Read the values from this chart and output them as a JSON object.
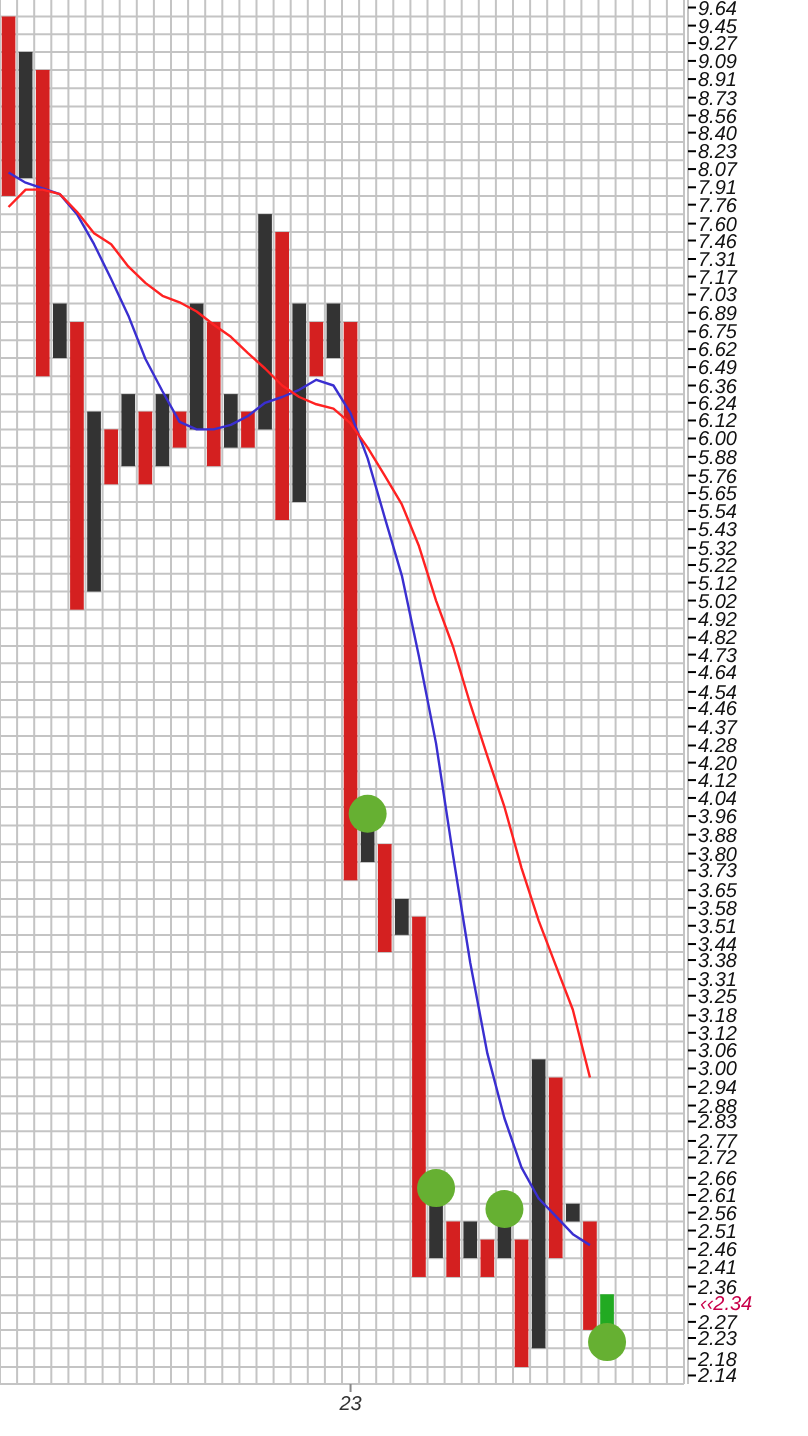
{
  "chart_data": {
    "type": "bar",
    "log": "y",
    "grid": true,
    "ylim": [
      2.12,
      9.72
    ],
    "categories": [
      null,
      null,
      null,
      null,
      null,
      null,
      null,
      null,
      null,
      null,
      null,
      null,
      null,
      null,
      null,
      null,
      null,
      null,
      null,
      null,
      "23",
      null,
      null,
      null,
      null,
      null,
      null,
      null,
      null,
      null,
      null,
      null,
      null,
      null,
      null,
      null
    ],
    "annotations": [
      "‹‹2.34"
    ],
    "yticks": [
      9.64,
      9.45,
      9.27,
      9.09,
      8.91,
      8.73,
      8.56,
      {
        "value": 8.4,
        "label": "8.40"
      },
      8.23,
      8.07,
      7.91,
      7.76,
      {
        "value": 7.6,
        "label": "7.60"
      },
      7.46,
      7.31,
      7.17,
      7.03,
      6.89,
      6.75,
      6.62,
      6.49,
      6.36,
      6.24,
      6.12,
      {
        "value": 6,
        "label": "6.00"
      },
      5.88,
      5.76,
      5.65,
      5.54,
      5.43,
      5.32,
      5.22,
      5.12,
      5.02,
      4.92,
      4.82,
      4.73,
      4.64,
      4.54,
      4.46,
      4.37,
      4.28,
      {
        "value": 4.2,
        "label": "4.20"
      },
      4.12,
      4.04,
      3.96,
      3.88,
      {
        "value": 3.8,
        "label": "3.80"
      },
      3.73,
      3.65,
      3.58,
      3.51,
      3.44,
      3.38,
      3.31,
      3.25,
      3.18,
      3.12,
      3.06,
      {
        "value": 3,
        "label": "3.00"
      },
      2.94,
      2.88,
      2.83,
      2.77,
      2.72,
      2.66,
      2.61,
      2.56,
      2.51,
      2.46,
      2.41,
      2.36,
      2.27,
      2.23,
      2.18,
      2.14
    ],
    "series": [
      {
        "color": "#333333",
        "colors": [
          null,
          null,
          null,
          null,
          null,
          null,
          null,
          null,
          null,
          null,
          null,
          null,
          null,
          null,
          null,
          null,
          null,
          null,
          null,
          null,
          null,
          null,
          null,
          null,
          null,
          null,
          null,
          null,
          null,
          null,
          null,
          null,
          null,
          null,
          null,
          "#22aa22"
        ],
        "base": [
          null,
          7.99,
          null,
          6.555,
          null,
          5.07,
          null,
          5.82,
          null,
          5.82,
          null,
          6.06,
          null,
          5.94,
          null,
          6.06,
          null,
          5.595,
          null,
          6.555,
          null,
          3.765,
          null,
          3.475,
          null,
          2.435,
          null,
          2.435,
          null,
          2.435,
          null,
          2.205,
          null,
          2.535,
          null,
          2.25
        ],
        "values": [
          null,
          1.19,
          null,
          0.405,
          null,
          1.11,
          null,
          0.48,
          null,
          0.48,
          null,
          0.9,
          null,
          0.36,
          null,
          1.62,
          null,
          1.365,
          null,
          0.405,
          null,
          0.155,
          null,
          0.14,
          null,
          0.15,
          null,
          0.1,
          null,
          0.1,
          null,
          0.825,
          null,
          0.05,
          null,
          0.09
        ]
      },
      {
        "color": "#d42020",
        "base": [
          7.835,
          null,
          6.425,
          null,
          4.97,
          null,
          5.705,
          null,
          5.705,
          null,
          5.94,
          null,
          5.82,
          null,
          5.94,
          null,
          5.485,
          null,
          6.425,
          null,
          3.69,
          null,
          3.41,
          null,
          2.385,
          null,
          2.385,
          null,
          2.385,
          null,
          2.16,
          null,
          2.435,
          null,
          2.25,
          null
        ],
        "values": [
          1.71,
          null,
          2.575,
          null,
          1.85,
          null,
          0.355,
          null,
          0.475,
          null,
          0.24,
          null,
          1.0,
          null,
          0.24,
          null,
          2.045,
          null,
          0.395,
          null,
          3.13,
          null,
          0.43,
          null,
          1.16,
          null,
          0.15,
          null,
          0.1,
          null,
          0.325,
          null,
          0.535,
          null,
          0.285,
          null
        ]
      },
      {
        "type": "line",
        "color": "#3a2fd0",
        "values": [
          8.04,
          7.95,
          7.9,
          7.85,
          7.68,
          7.43,
          7.15,
          6.87,
          6.55,
          6.32,
          6.11,
          6.06,
          6.06,
          6.09,
          6.15,
          6.24,
          6.28,
          6.33,
          6.4,
          6.36,
          6.17,
          5.87,
          5.5,
          5.16,
          4.72,
          4.29,
          3.79,
          3.37,
          3.05,
          2.84,
          2.69,
          2.6,
          2.55,
          2.5,
          2.47,
          null
        ]
      },
      {
        "type": "line",
        "color": "#ff2222",
        "values": [
          7.74,
          7.89,
          7.89,
          7.85,
          7.7,
          7.52,
          7.43,
          7.25,
          7.12,
          7.02,
          6.97,
          6.9,
          6.8,
          6.71,
          6.59,
          6.48,
          6.36,
          6.28,
          6.23,
          6.2,
          6.1,
          5.94,
          5.76,
          5.58,
          5.33,
          5.02,
          4.77,
          4.48,
          4.23,
          4.0,
          3.74,
          3.53,
          3.36,
          3.2,
          2.97,
          null
        ]
      },
      {
        "type": "scatter",
        "marker": "circle",
        "color": "#66b032",
        "values": [
          null,
          null,
          null,
          null,
          null,
          null,
          null,
          null,
          null,
          null,
          null,
          null,
          null,
          null,
          null,
          null,
          null,
          null,
          null,
          null,
          null,
          3.97,
          null,
          null,
          null,
          2.63,
          null,
          null,
          null,
          2.57,
          null,
          null,
          null,
          null,
          null,
          2.22
        ]
      }
    ]
  }
}
